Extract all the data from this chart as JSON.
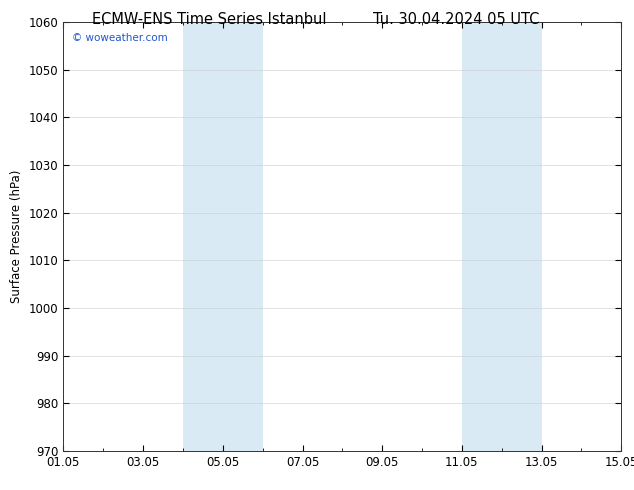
{
  "title_left": "ECMW-ENS Time Series Istanbul",
  "title_right": "Tu. 30.04.2024 05 UTC",
  "ylabel": "Surface Pressure (hPa)",
  "ylim": [
    970,
    1060
  ],
  "yticks": [
    970,
    980,
    990,
    1000,
    1010,
    1020,
    1030,
    1040,
    1050,
    1060
  ],
  "xtick_labels": [
    "01.05",
    "03.05",
    "05.05",
    "07.05",
    "09.05",
    "11.05",
    "13.05",
    "15.05"
  ],
  "xtick_positions": [
    0,
    2,
    4,
    6,
    8,
    10,
    12,
    14
  ],
  "xlim": [
    0,
    14
  ],
  "shaded_bands": [
    {
      "x_start": 3.0,
      "x_end": 4.0
    },
    {
      "x_start": 4.0,
      "x_end": 5.0
    },
    {
      "x_start": 10.0,
      "x_end": 11.0
    },
    {
      "x_start": 11.0,
      "x_end": 12.0
    }
  ],
  "shaded_color": "#daeaf5",
  "watermark": "© woweather.com",
  "watermark_color": "#2255cc",
  "background_color": "#ffffff",
  "plot_bg_color": "#ffffff",
  "title_fontsize": 10.5,
  "tick_fontsize": 8.5,
  "ylabel_fontsize": 8.5
}
